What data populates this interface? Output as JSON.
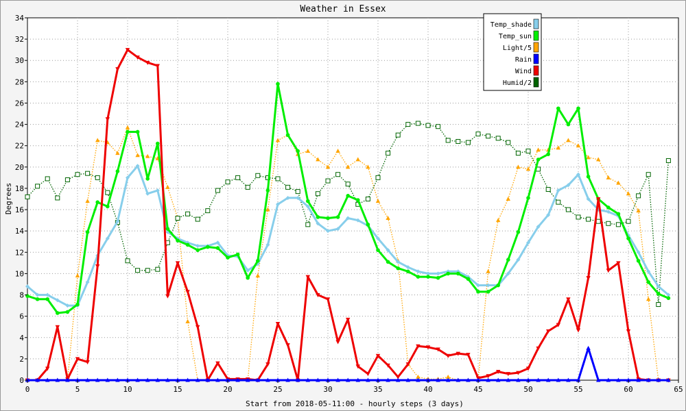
{
  "chart_data": {
    "type": "line",
    "title": "Weather in Essex",
    "xlabel": "Start from 2018-05-11:00 - hourly steps (3 days)",
    "ylabel": "Degrees",
    "xlim": [
      0,
      65
    ],
    "ylim": [
      0,
      34
    ],
    "x_ticks": [
      0,
      5,
      10,
      15,
      20,
      25,
      30,
      35,
      40,
      45,
      50,
      55,
      60,
      65
    ],
    "y_ticks": [
      0,
      2,
      4,
      6,
      8,
      10,
      12,
      14,
      16,
      18,
      20,
      22,
      24,
      26,
      28,
      30,
      32,
      34
    ],
    "grid": true,
    "legend_position": "top-right",
    "x": [
      0,
      1,
      2,
      3,
      4,
      5,
      6,
      7,
      8,
      9,
      10,
      11,
      12,
      13,
      14,
      15,
      16,
      17,
      18,
      19,
      20,
      21,
      22,
      23,
      24,
      25,
      26,
      27,
      28,
      29,
      30,
      31,
      32,
      33,
      34,
      35,
      36,
      37,
      38,
      39,
      40,
      41,
      42,
      43,
      44,
      45,
      46,
      47,
      48,
      49,
      50,
      51,
      52,
      53,
      54,
      55,
      56,
      57,
      58,
      59,
      60,
      61,
      62,
      63,
      64
    ],
    "series": [
      {
        "name": "Temp_shade",
        "color": "#87ceeb",
        "style": "solid",
        "marker": "diamond",
        "values": [
          8.8,
          8.0,
          8.0,
          7.5,
          7.0,
          7.0,
          9.2,
          11.7,
          13.3,
          14.9,
          19.0,
          20.1,
          17.5,
          17.8,
          13.9,
          13.3,
          12.9,
          12.6,
          12.6,
          12.9,
          11.7,
          11.6,
          10.3,
          10.9,
          12.7,
          16.5,
          17.1,
          17.1,
          16.3,
          14.7,
          14.0,
          14.2,
          15.2,
          15.0,
          14.5,
          13.3,
          12.2,
          11.1,
          10.6,
          10.2,
          10.0,
          10.0,
          10.2,
          10.2,
          9.7,
          8.9,
          8.9,
          8.9,
          10.0,
          11.3,
          12.9,
          14.4,
          15.5,
          17.8,
          18.3,
          19.3,
          17.0,
          16.0,
          15.8,
          15.4,
          13.6,
          12.0,
          10.2,
          8.8,
          8.0
        ]
      },
      {
        "name": "Temp_sun",
        "color": "#00ee00",
        "style": "solid",
        "marker": "circle",
        "values": [
          7.9,
          7.6,
          7.6,
          6.3,
          6.4,
          7.1,
          13.9,
          16.7,
          16.3,
          19.6,
          23.3,
          23.3,
          18.9,
          22.2,
          14.2,
          13.1,
          12.7,
          12.2,
          12.5,
          12.4,
          11.5,
          11.8,
          9.6,
          11.2,
          17.8,
          27.8,
          23.0,
          21.5,
          16.8,
          15.3,
          15.2,
          15.3,
          17.3,
          16.9,
          14.6,
          12.2,
          11.1,
          10.5,
          10.2,
          9.7,
          9.7,
          9.6,
          10.0,
          10.0,
          9.5,
          8.3,
          8.3,
          8.9,
          11.3,
          13.9,
          17.1,
          20.7,
          21.2,
          25.5,
          24.0,
          25.5,
          19.1,
          17.0,
          16.2,
          15.6,
          13.3,
          11.2,
          9.2,
          8.1,
          7.7
        ]
      },
      {
        "name": "Light/5",
        "color": "#ffa500",
        "style": "dotted",
        "marker": "triangle",
        "values": [
          0,
          0,
          0,
          0,
          0,
          9.8,
          16.8,
          22.5,
          22.3,
          21.3,
          23.7,
          21.1,
          21.0,
          20.8,
          18.1,
          15.2,
          5.5,
          0,
          0,
          0,
          0,
          0,
          0,
          9.8,
          16.0,
          22.5,
          23.0,
          21.2,
          21.5,
          20.7,
          20.0,
          21.5,
          20.0,
          20.7,
          20.0,
          16.8,
          15.2,
          11.2,
          1.5,
          0.3,
          0.1,
          0.1,
          0.3,
          0,
          0,
          0,
          10.2,
          15.0,
          17.0,
          20.0,
          19.8,
          21.6,
          21.6,
          21.8,
          22.5,
          22.0,
          20.9,
          20.7,
          19.0,
          18.5,
          17.5,
          15.9,
          7.6,
          0,
          0
        ]
      },
      {
        "name": "Rain",
        "color": "#0000ff",
        "style": "solid",
        "marker": "triangle",
        "values": [
          0,
          0,
          0,
          0,
          0,
          0,
          0,
          0,
          0,
          0,
          0,
          0,
          0,
          0,
          0,
          0,
          0,
          0,
          0,
          0,
          0,
          0,
          0,
          0,
          0,
          0,
          0,
          0,
          0,
          0,
          0,
          0,
          0,
          0,
          0,
          0,
          0,
          0,
          0,
          0,
          0,
          0,
          0,
          0,
          0,
          0,
          0,
          0,
          0,
          0,
          0,
          0,
          0,
          0,
          0,
          0,
          3.0,
          0,
          0,
          0,
          0,
          0,
          0,
          0,
          0
        ]
      },
      {
        "name": "Wind",
        "color": "#ee0000",
        "style": "solid",
        "marker": "triangle-down",
        "values": [
          0,
          0,
          1.1,
          5.0,
          0.1,
          2.0,
          1.7,
          10.7,
          24.5,
          29.2,
          31.0,
          30.3,
          29.8,
          29.5,
          7.9,
          11.0,
          8.3,
          5.0,
          0,
          1.6,
          0.1,
          0.1,
          0.1,
          0,
          1.5,
          5.3,
          3.3,
          0,
          9.7,
          8.0,
          7.6,
          3.6,
          5.7,
          1.3,
          0.6,
          2.3,
          1.4,
          0.3,
          1.5,
          3.2,
          3.1,
          2.9,
          2.3,
          2.5,
          2.4,
          0.2,
          0.4,
          0.8,
          0.6,
          0.7,
          1.1,
          3.0,
          4.6,
          5.2,
          7.6,
          4.7,
          9.6,
          17.0,
          10.3,
          11.0,
          4.6,
          0.1,
          0,
          0,
          0
        ]
      },
      {
        "name": "Humid/2",
        "color": "#006400",
        "style": "dotted",
        "marker": "square",
        "values": [
          17.2,
          18.2,
          18.9,
          17.1,
          18.8,
          19.3,
          19.4,
          19.0,
          17.6,
          14.8,
          11.2,
          10.3,
          10.3,
          10.4,
          12.9,
          15.2,
          15.6,
          15.1,
          15.9,
          17.8,
          18.6,
          19.0,
          18.1,
          19.2,
          19.0,
          18.9,
          18.1,
          17.7,
          14.6,
          17.5,
          18.7,
          19.3,
          18.4,
          16.5,
          17.0,
          19.0,
          21.3,
          23.0,
          24.0,
          24.1,
          23.9,
          23.8,
          22.5,
          22.4,
          22.3,
          23.1,
          22.9,
          22.7,
          22.3,
          21.3,
          21.5,
          19.8,
          17.9,
          16.7,
          16.0,
          15.3,
          15.1,
          14.9,
          14.7,
          14.6,
          14.9,
          17.3,
          19.3,
          7.1,
          20.6
        ]
      }
    ]
  }
}
